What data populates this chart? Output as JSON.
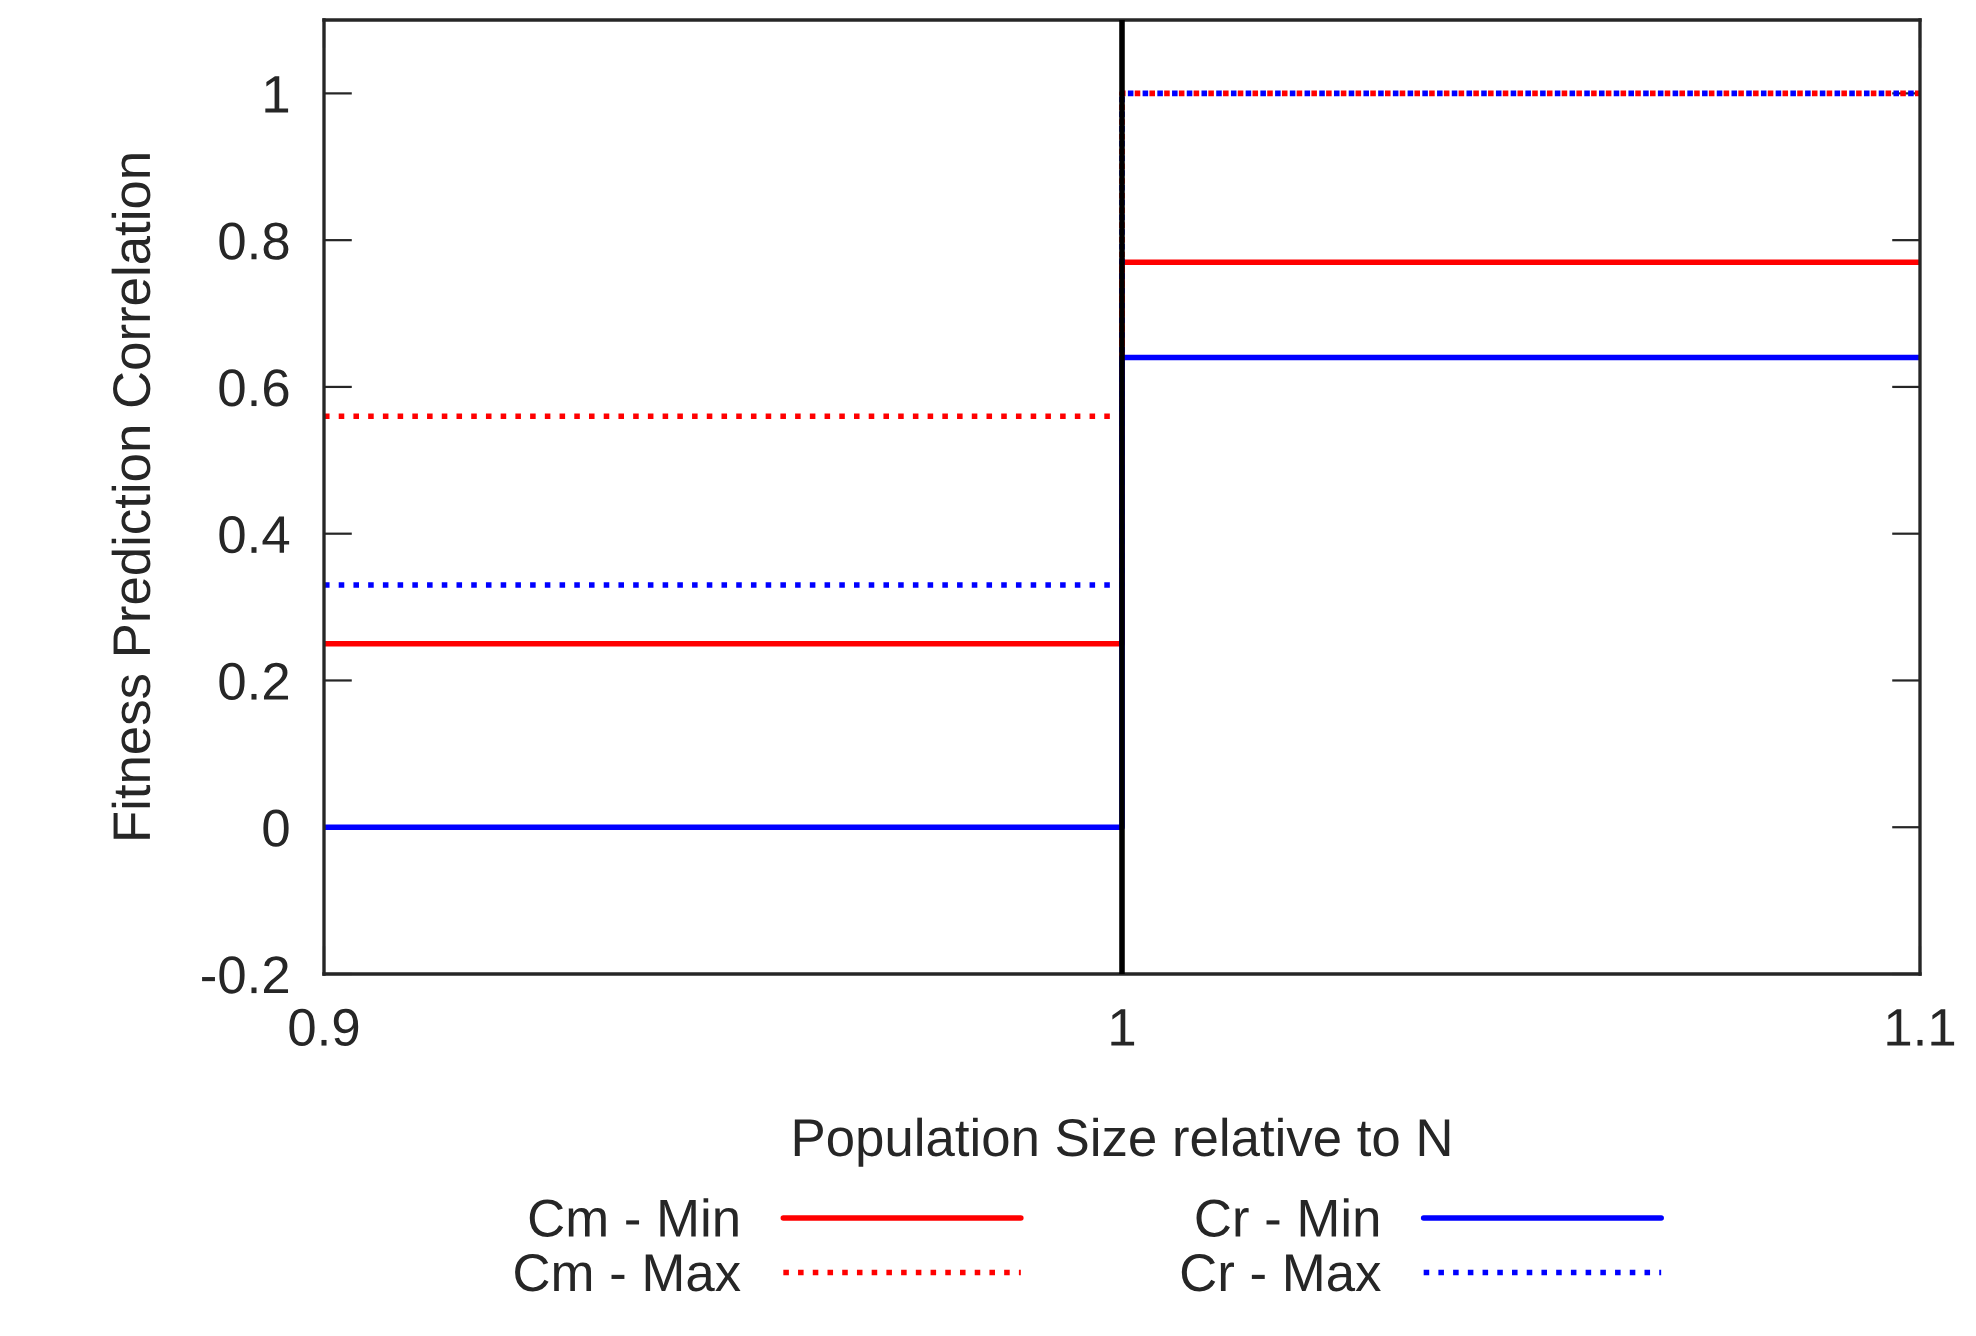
{
  "chart_data": {
    "type": "step",
    "xlabel": "Population Size relative to N",
    "ylabel": "Fitness Prediction Correlation",
    "x": [
      0.9,
      1,
      1.1
    ],
    "series": [
      {
        "name": "Cm - Min",
        "color": "#ff0000",
        "line_style": "solid",
        "values": [
          0.25,
          0.77,
          0.77
        ]
      },
      {
        "name": "Cm - Max",
        "color": "#ff0000",
        "line_style": "dotted",
        "values": [
          0.56,
          1.0,
          1.0
        ]
      },
      {
        "name": "Cr - Min",
        "color": "#0000ff",
        "line_style": "solid",
        "values": [
          0,
          0.64,
          0.64
        ]
      },
      {
        "name": "Cr - Max",
        "color": "#0000ff",
        "line_style": "dotted",
        "values": [
          0.33,
          1.0,
          1.0
        ]
      }
    ],
    "ref_lines": [
      {
        "axis": "x",
        "value": 1,
        "color": "#000000",
        "line_style": "solid"
      }
    ],
    "xlim": [
      0.9,
      1.1
    ],
    "xticks": [
      0.9,
      1,
      1.1
    ],
    "ylim": [
      -0.2,
      1.1
    ],
    "yticks": [
      -0.2,
      0,
      0.2,
      0.4,
      0.6,
      0.8,
      1
    ],
    "grid": false,
    "legend": "bottom"
  }
}
